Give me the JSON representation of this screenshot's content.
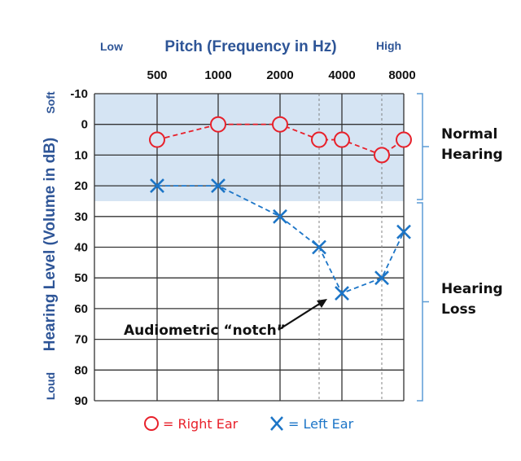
{
  "chart_data": {
    "type": "line",
    "title": "",
    "xlabel": "Pitch (Frequency in Hz)",
    "ylabel": "Hearing Level (Volume in dB)",
    "x_low_label": "Low",
    "x_high_label": "High",
    "y_top_label": "Soft",
    "y_bottom_label": "Loud",
    "x_tick_labels": [
      "500",
      "1000",
      "2000",
      "4000",
      "8000"
    ],
    "x_positions": [
      500,
      1000,
      2000,
      3000,
      4000,
      6000,
      8000
    ],
    "y_ticks": [
      -10,
      0,
      10,
      20,
      30,
      40,
      50,
      60,
      70,
      80,
      90
    ],
    "ylim": [
      -10,
      90
    ],
    "y_inverted": true,
    "grid": true,
    "normal_band": [
      -10,
      25
    ],
    "series": [
      {
        "name": "Right Ear",
        "marker": "circle",
        "color": "#e8202a",
        "x": [
          500,
          1000,
          2000,
          3000,
          4000,
          6000,
          8000
        ],
        "values": [
          5,
          0,
          0,
          5,
          5,
          10,
          5
        ]
      },
      {
        "name": "Left Ear",
        "marker": "x",
        "color": "#1c75c7",
        "x": [
          500,
          1000,
          2000,
          3000,
          4000,
          6000,
          8000
        ],
        "values": [
          20,
          20,
          30,
          40,
          55,
          50,
          35
        ]
      }
    ],
    "legend": [
      {
        "symbol": "○",
        "text": "= Right Ear"
      },
      {
        "symbol": "X",
        "text": "= Left Ear"
      }
    ],
    "legend_placement": "bottom",
    "annotation": {
      "text": "Audiometric “notch”",
      "points_to_x": 4000,
      "points_to_y": 55
    },
    "brackets": [
      {
        "label_lines": [
          "Normal",
          "Hearing"
        ],
        "range": [
          -10,
          25
        ]
      },
      {
        "label_lines": [
          "Hearing",
          "Loss"
        ],
        "range": [
          25,
          90
        ]
      }
    ],
    "colors": {
      "band": "#d5e4f3",
      "axis_text": "#2e5597",
      "bracket": "#5b9bd5"
    }
  }
}
